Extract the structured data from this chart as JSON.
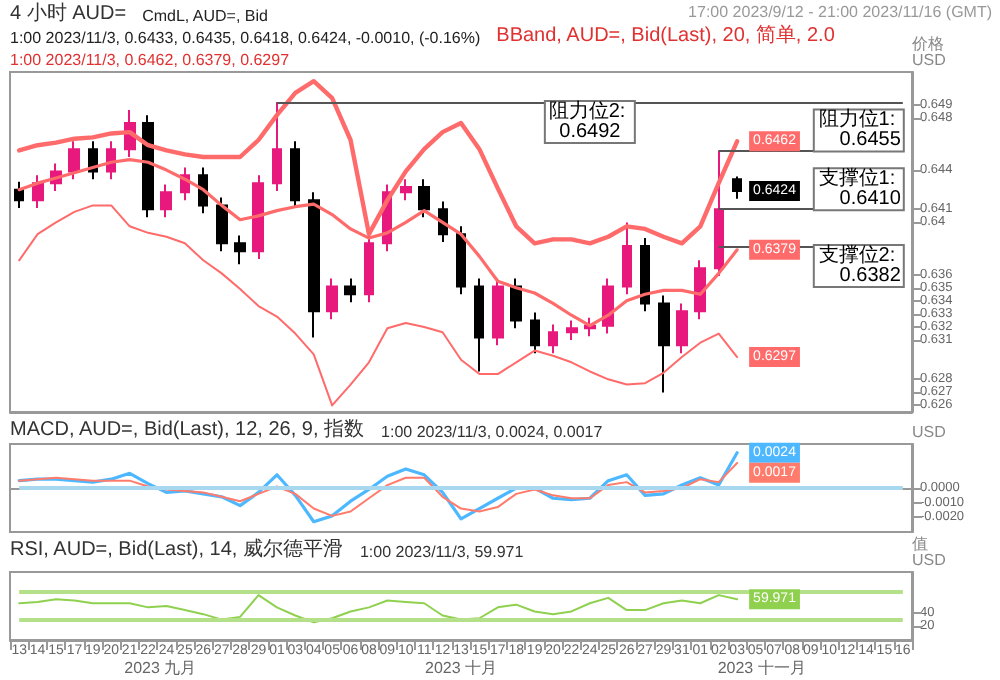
{
  "chart_data": [
    {
      "type": "candlestick",
      "title": "4 小时 AUD=",
      "subtitle": "17:00 2023/9/12 - 21:00 2023/11/16 (GMT)",
      "ylabel": "价格\nUSD",
      "annotations": [
        "CmdL, AUD=, Bid",
        "1:00 2023/11/3, 0.6433, 0.6435, 0.6418, 0.6424, -0.0010, (-0.16%)",
        "BBand, AUD=, Bid(Last), 20, 简单, 2.0",
        "1:00 2023/11/3, 0.6462, 0.6379, 0.6297"
      ],
      "categories": [
        "13",
        "14",
        "15",
        "17",
        "19",
        "20",
        "21",
        "22",
        "24",
        "25",
        "26",
        "27",
        "28",
        "29",
        "01",
        "03",
        "04",
        "05",
        "06",
        "08",
        "09",
        "10",
        "11",
        "12",
        "13",
        "15",
        "17",
        "18",
        "19",
        "20",
        "22",
        "24",
        "25",
        "26",
        "27",
        "29",
        "31",
        "01",
        "02",
        "03",
        "05",
        "07",
        "08",
        "09",
        "10",
        "12",
        "14",
        "15",
        "16"
      ],
      "ylim": [
        0.6255,
        0.6515
      ],
      "yticks": [
        0.626,
        0.627,
        0.628,
        0.631,
        0.632,
        0.633,
        0.634,
        0.635,
        0.636,
        0.64,
        0.641,
        0.644,
        0.648,
        0.649
      ],
      "tick_labels": "y",
      "grid": false,
      "marker": "none",
      "line_style": "solid",
      "series": [
        {
          "ohlc": [
            [
              0.6425,
              0.6431,
              0.6411,
              0.6417
            ],
            [
              0.6417,
              0.6436,
              0.6411,
              0.643
            ],
            [
              0.643,
              0.6445,
              0.6424,
              0.6439
            ],
            [
              0.6439,
              0.6462,
              0.6433,
              0.6456
            ],
            [
              0.6456,
              0.6462,
              0.6433,
              0.6439
            ],
            [
              0.6439,
              0.6462,
              0.6433,
              0.6456
            ],
            [
              0.6456,
              0.6486,
              0.645,
              0.6476
            ],
            [
              0.6476,
              0.6482,
              0.6404,
              0.641
            ],
            [
              0.641,
              0.6429,
              0.6404,
              0.6423
            ],
            [
              0.6423,
              0.6442,
              0.6417,
              0.6436
            ],
            [
              0.6436,
              0.6442,
              0.6407,
              0.6413
            ],
            [
              0.6413,
              0.6419,
              0.6378,
              0.6384
            ],
            [
              0.6384,
              0.639,
              0.6368,
              0.6378
            ],
            [
              0.6378,
              0.6436,
              0.6372,
              0.643
            ],
            [
              0.643,
              0.6492,
              0.6424,
              0.6456
            ],
            [
              0.6456,
              0.6462,
              0.6411,
              0.6417
            ],
            [
              0.6417,
              0.6423,
              0.6312,
              0.6332
            ],
            [
              0.6332,
              0.6357,
              0.6326,
              0.6351
            ],
            [
              0.6351,
              0.6357,
              0.6339,
              0.6345
            ],
            [
              0.6345,
              0.639,
              0.6339,
              0.6384
            ],
            [
              0.6384,
              0.6429,
              0.6378,
              0.6423
            ],
            [
              0.6423,
              0.6433,
              0.6417,
              0.6427
            ],
            [
              0.6427,
              0.6433,
              0.6404,
              0.641
            ],
            [
              0.641,
              0.6416,
              0.6385,
              0.6391
            ],
            [
              0.6391,
              0.6397,
              0.6345,
              0.6351
            ],
            [
              0.6351,
              0.6357,
              0.6286,
              0.6312
            ],
            [
              0.6312,
              0.6357,
              0.6306,
              0.6351
            ],
            [
              0.6351,
              0.6357,
              0.6319,
              0.6325
            ],
            [
              0.6325,
              0.6331,
              0.63,
              0.6306
            ],
            [
              0.6306,
              0.6322,
              0.63,
              0.6316
            ],
            [
              0.6316,
              0.6325,
              0.631,
              0.6319
            ],
            [
              0.6319,
              0.6327,
              0.6313,
              0.6321
            ],
            [
              0.6321,
              0.6357,
              0.6315,
              0.6351
            ],
            [
              0.6351,
              0.64,
              0.6345,
              0.6382
            ],
            [
              0.6382,
              0.6388,
              0.6332,
              0.6338
            ],
            [
              0.6338,
              0.6344,
              0.627,
              0.6306
            ],
            [
              0.6306,
              0.6338,
              0.63,
              0.6332
            ],
            [
              0.6332,
              0.6371,
              0.6326,
              0.6365
            ],
            [
              0.6365,
              0.6455,
              0.6359,
              0.641
            ],
            [
              0.6433,
              0.6435,
              0.6418,
              0.6424
            ],
            null,
            null,
            null,
            null,
            null,
            null,
            null,
            null,
            null
          ],
          "colors": [
            "#000000",
            "#e8197d",
            "#e8197d",
            "#e8197d",
            "#000000",
            "#e8197d",
            "#e8197d",
            "#000000",
            "#e8197d",
            "#e8197d",
            "#000000",
            "#000000",
            "#000000",
            "#e8197d",
            "#e8197d",
            "#000000",
            "#000000",
            "#e8197d",
            "#000000",
            "#e8197d",
            "#e8197d",
            "#e8197d",
            "#000000",
            "#000000",
            "#000000",
            "#000000",
            "#e8197d",
            "#000000",
            "#000000",
            "#e8197d",
            "#e8197d",
            "#e8197d",
            "#e8197d",
            "#e8197d",
            "#000000",
            "#000000",
            "#e8197d",
            "#e8197d",
            "#e8197d",
            "#000000",
            null,
            null,
            null,
            null,
            null,
            null,
            null,
            null,
            null
          ],
          "value_labels": [
            null,
            null,
            null,
            null,
            null,
            null,
            null,
            null,
            null,
            null,
            null,
            null,
            null,
            null,
            null,
            null,
            null,
            null,
            null,
            null,
            null,
            null,
            null,
            null,
            null,
            null,
            null,
            null,
            null,
            null,
            null,
            null,
            null,
            null,
            null,
            null,
            null,
            null,
            null,
            "0.6424",
            null,
            null,
            null,
            null,
            null,
            null,
            null,
            null,
            null
          ]
        },
        {
          "type": "line",
          "color": "#ff6b6b",
          "values": [
            0.6455,
            0.6459,
            0.6461,
            0.6464,
            0.6465,
            0.6468,
            0.6469,
            0.6459,
            0.6455,
            0.6452,
            0.645,
            0.645,
            0.645,
            0.6463,
            0.6482,
            0.6499,
            0.6508,
            0.6495,
            0.6463,
            0.6391,
            0.6417,
            0.6439,
            0.6456,
            0.6469,
            0.6476,
            0.6456,
            0.6426,
            0.6397,
            0.6384,
            0.6387,
            0.6387,
            0.6384,
            0.6389,
            0.6397,
            0.6395,
            0.6389,
            0.6384,
            0.6397,
            0.643,
            0.6462,
            null,
            null,
            null,
            null,
            null,
            null,
            null,
            null,
            null
          ],
          "value_labels": [
            null,
            null,
            null,
            null,
            null,
            null,
            null,
            null,
            null,
            null,
            null,
            null,
            null,
            null,
            null,
            null,
            null,
            null,
            null,
            null,
            null,
            null,
            null,
            null,
            null,
            null,
            null,
            null,
            null,
            null,
            null,
            null,
            null,
            null,
            null,
            null,
            null,
            null,
            null,
            "0.6462",
            null,
            null,
            null,
            null,
            null,
            null,
            null,
            null,
            null
          ]
        },
        {
          "type": "line",
          "color": "#ff6b6b",
          "values": [
            0.6425,
            0.643,
            0.6434,
            0.6438,
            0.6442,
            0.6446,
            0.6448,
            0.6446,
            0.644,
            0.6433,
            0.6425,
            0.6413,
            0.6402,
            0.6405,
            0.6409,
            0.6412,
            0.6414,
            0.6406,
            0.6395,
            0.6388,
            0.6392,
            0.64,
            0.6409,
            0.64,
            0.6391,
            0.6374,
            0.6355,
            0.635,
            0.6346,
            0.6338,
            0.6329,
            0.6321,
            0.6329,
            0.634,
            0.6345,
            0.6348,
            0.6348,
            0.6345,
            0.6361,
            0.6379,
            null,
            null,
            null,
            null,
            null,
            null,
            null,
            null,
            null
          ],
          "value_labels": [
            null,
            null,
            null,
            null,
            null,
            null,
            null,
            null,
            null,
            null,
            null,
            null,
            null,
            null,
            null,
            null,
            null,
            null,
            null,
            null,
            null,
            null,
            null,
            null,
            null,
            null,
            null,
            null,
            null,
            null,
            null,
            null,
            null,
            null,
            null,
            null,
            null,
            null,
            null,
            "0.6379",
            null,
            null,
            null,
            null,
            null,
            null,
            null,
            null,
            null
          ]
        },
        {
          "type": "line",
          "color": "#ff6b6b",
          "values": [
            0.6371,
            0.6391,
            0.64,
            0.6408,
            0.6413,
            0.6413,
            0.6397,
            0.6392,
            0.6389,
            0.6384,
            0.6371,
            0.6361,
            0.6349,
            0.6336,
            0.6328,
            0.6315,
            0.6299,
            0.626,
            0.6276,
            0.6293,
            0.6319,
            0.6323,
            0.632,
            0.6316,
            0.6295,
            0.6284,
            0.6284,
            0.6293,
            0.6302,
            0.6298,
            0.6293,
            0.6286,
            0.628,
            0.6276,
            0.6277,
            0.6285,
            0.6297,
            0.6308,
            0.6315,
            0.6297,
            null,
            null,
            null,
            null,
            null,
            null,
            null,
            null,
            null
          ],
          "value_labels": [
            null,
            null,
            null,
            null,
            null,
            null,
            null,
            null,
            null,
            null,
            null,
            null,
            null,
            null,
            null,
            null,
            null,
            null,
            null,
            null,
            null,
            null,
            null,
            null,
            null,
            null,
            null,
            null,
            null,
            null,
            null,
            null,
            null,
            null,
            null,
            null,
            null,
            null,
            null,
            "0.6297",
            null,
            null,
            null,
            null,
            null,
            null,
            null,
            null,
            null
          ]
        }
      ],
      "ref_lines": [
        {
          "axis": "y",
          "value": 0.6492,
          "label": "阻力位2: 0.6492",
          "color": "#555555"
        },
        {
          "axis": "y",
          "value": 0.6455,
          "label": "阻力位1: 0.6455",
          "color": "#555555"
        },
        {
          "axis": "y",
          "value": 0.641,
          "label": "支撑位1: 0.6410",
          "color": "#555555"
        },
        {
          "axis": "y",
          "value": 0.6382,
          "label": "支撑位2: 0.6382",
          "color": "#555555"
        }
      ]
    },
    {
      "type": "line",
      "title": "MACD, AUD=, Bid(Last), 12, 26, 9, 指数",
      "subtitle": "1:00 2023/11/3, 0.0024, 0.0017",
      "ylabel": "USD",
      "categories": [
        "13",
        "14",
        "15",
        "17",
        "19",
        "20",
        "21",
        "22",
        "24",
        "25",
        "26",
        "27",
        "28",
        "29",
        "01",
        "03",
        "04",
        "05",
        "06",
        "08",
        "09",
        "10",
        "11",
        "12",
        "13",
        "15",
        "17",
        "18",
        "19",
        "20",
        "22",
        "24",
        "25",
        "26",
        "27",
        "29",
        "31",
        "01",
        "02",
        "03",
        "05",
        "07",
        "08",
        "09",
        "10",
        "12",
        "14",
        "15",
        "16"
      ],
      "ylim": [
        -0.003,
        0.003
      ],
      "yticks": [
        {
          "value": -0.002,
          "label": "-0.0020"
        },
        {
          "value": -0.001,
          "label": "-0.0010"
        },
        {
          "value": 0,
          "label": "0.0000"
        }
      ],
      "tick_labels": "y",
      "grid": false,
      "marker": "none",
      "line_style": "solid",
      "series": [
        {
          "color": "#4db8ff",
          "values": [
            0.0005,
            0.0006,
            0.0006,
            0.0005,
            0.0004,
            0.0006,
            0.001,
            0.0003,
            -0.0003,
            -0.0002,
            -0.0004,
            -0.0006,
            -0.0012,
            -0.0003,
            0.0009,
            -0.0005,
            -0.0023,
            -0.0019,
            -0.0009,
            -0.0001,
            0.0008,
            0.0013,
            0.0009,
            -0.0003,
            -0.0021,
            -0.0014,
            -0.0007,
            0.0,
            0.0,
            -0.0007,
            -0.0008,
            -0.0007,
            0.0005,
            0.0009,
            -0.0005,
            -0.0004,
            0.0002,
            0.0007,
            0.0002,
            0.0024,
            null,
            null,
            null,
            null,
            null,
            null,
            null,
            null,
            null
          ],
          "value_labels": [
            null,
            null,
            null,
            null,
            null,
            null,
            null,
            null,
            null,
            null,
            null,
            null,
            null,
            null,
            null,
            null,
            null,
            null,
            null,
            null,
            null,
            null,
            null,
            null,
            null,
            null,
            null,
            null,
            null,
            null,
            null,
            null,
            null,
            null,
            null,
            null,
            null,
            null,
            null,
            "0.0024",
            null,
            null,
            null,
            null,
            null,
            null,
            null,
            null,
            null
          ]
        },
        {
          "color": "#ff7b6b",
          "values": [
            0.0005,
            0.0006,
            0.0007,
            0.0006,
            0.0005,
            0.0005,
            0.0005,
            0.0001,
            -0.0001,
            -0.0002,
            -0.0003,
            -0.0006,
            -0.0009,
            -0.0004,
            0.0001,
            -0.0004,
            -0.0014,
            -0.0019,
            -0.0016,
            -0.0007,
            0.0002,
            0.0007,
            0.0007,
            -0.0006,
            -0.0014,
            -0.0016,
            -0.0013,
            -0.0004,
            -0.0001,
            -0.0005,
            -0.0007,
            -0.0007,
            0.0002,
            0.0004,
            -0.0003,
            -0.0002,
            0.0,
            0.0006,
            0.0004,
            0.0017,
            null,
            null,
            null,
            null,
            null,
            null,
            null,
            null,
            null
          ],
          "value_labels": [
            null,
            null,
            null,
            null,
            null,
            null,
            null,
            null,
            null,
            null,
            null,
            null,
            null,
            null,
            null,
            null,
            null,
            null,
            null,
            null,
            null,
            null,
            null,
            null,
            null,
            null,
            null,
            null,
            null,
            null,
            null,
            null,
            null,
            null,
            null,
            null,
            null,
            null,
            null,
            "0.0017",
            null,
            null,
            null,
            null,
            null,
            null,
            null,
            null,
            null
          ]
        }
      ],
      "ref_lines": [
        {
          "axis": "y",
          "value": 0,
          "color": "#a8d8f0"
        }
      ]
    },
    {
      "type": "line",
      "title": "RSI, AUD=, Bid(Last), 14, 威尔德平滑",
      "subtitle": "1:00 2023/11/3, 59.971",
      "ylabel": "值\nUSD",
      "annotations": [
        "2023 九月",
        "2023 十月",
        "2023 十一月"
      ],
      "categories": [
        "13",
        "14",
        "15",
        "17",
        "19",
        "20",
        "21",
        "22",
        "24",
        "25",
        "26",
        "27",
        "28",
        "29",
        "01",
        "03",
        "04",
        "05",
        "06",
        "08",
        "09",
        "10",
        "11",
        "12",
        "13",
        "15",
        "17",
        "18",
        "19",
        "20",
        "22",
        "24",
        "25",
        "26",
        "27",
        "29",
        "31",
        "01",
        "02",
        "03",
        "05",
        "07",
        "08",
        "09",
        "10",
        "12",
        "14",
        "15",
        "16"
      ],
      "ylim": [
        0,
        100
      ],
      "yticks": [
        20,
        40
      ],
      "grid": false,
      "marker": "none",
      "line_style": "solid",
      "series": [
        {
          "color": "#8fd14f",
          "values": [
            54,
            56,
            60,
            58,
            54,
            54,
            54,
            48,
            50,
            44,
            38,
            30,
            34,
            66,
            48,
            36,
            26,
            32,
            42,
            48,
            58,
            56,
            54,
            36,
            30,
            32,
            48,
            52,
            42,
            38,
            42,
            54,
            62,
            44,
            44,
            54,
            58,
            54,
            66,
            59.971,
            null,
            null,
            null,
            null,
            null,
            null,
            null,
            null,
            null
          ],
          "value_labels": [
            null,
            null,
            null,
            null,
            null,
            null,
            null,
            null,
            null,
            null,
            null,
            null,
            null,
            null,
            null,
            null,
            null,
            null,
            null,
            null,
            null,
            null,
            null,
            null,
            null,
            null,
            null,
            null,
            null,
            null,
            null,
            null,
            null,
            null,
            null,
            null,
            null,
            null,
            null,
            "59.971",
            null,
            null,
            null,
            null,
            null,
            null,
            null,
            null,
            null
          ]
        }
      ],
      "ref_lines": [
        {
          "axis": "y",
          "value": 70,
          "color": "#b5e08a"
        },
        {
          "axis": "y",
          "value": 30,
          "color": "#b5e08a"
        }
      ]
    }
  ]
}
